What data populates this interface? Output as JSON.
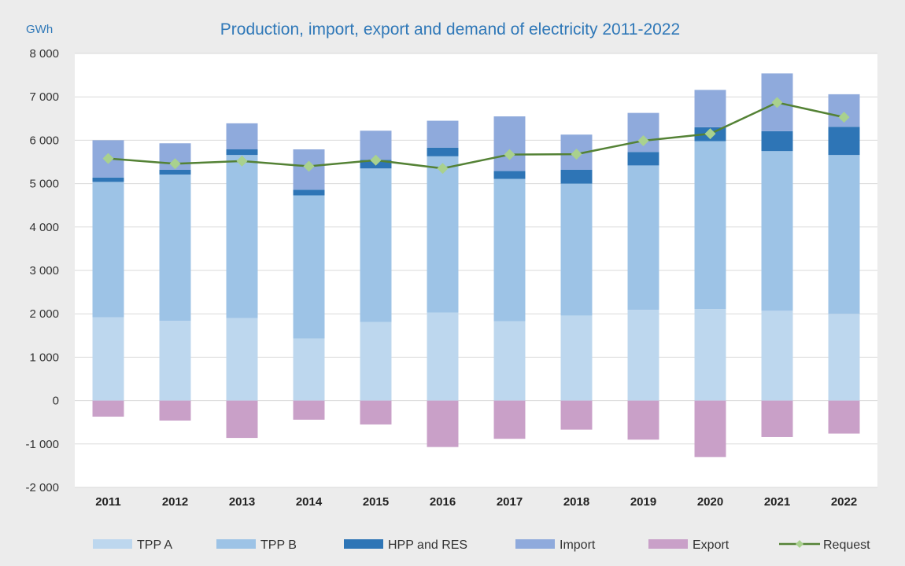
{
  "chart_data": {
    "type": "bar",
    "stacked": true,
    "title": "Production, import, export and demand of electricity 2011-2022",
    "ylabel": "GWh",
    "xlabel": "",
    "ylim": [
      -2000,
      8000
    ],
    "yticks": [
      -2000,
      -1000,
      0,
      1000,
      2000,
      3000,
      4000,
      5000,
      6000,
      7000,
      8000
    ],
    "ytick_labels": [
      "-2 000",
      "-1 000",
      "0",
      "1 000",
      "2 000",
      "3 000",
      "4 000",
      "5 000",
      "6 000",
      "7 000",
      "8 000"
    ],
    "grid": true,
    "legend_position": "bottom",
    "categories": [
      "2011",
      "2012",
      "2013",
      "2014",
      "2015",
      "2016",
      "2017",
      "2018",
      "2019",
      "2020",
      "2021",
      "2022"
    ],
    "series": [
      {
        "name": "TPP A",
        "kind": "bar",
        "color": "#bdd7ee",
        "values": [
          1920,
          1840,
          1900,
          1430,
          1810,
          2030,
          1830,
          1960,
          2090,
          2110,
          2070,
          2000
        ]
      },
      {
        "name": "TPP B",
        "kind": "bar",
        "color": "#9dc3e6",
        "values": [
          3120,
          3370,
          3760,
          3300,
          3540,
          3600,
          3280,
          3040,
          3330,
          3870,
          3680,
          3660
        ]
      },
      {
        "name": "HPP and RES",
        "kind": "bar",
        "color": "#2e75b6",
        "values": [
          100,
          110,
          130,
          130,
          200,
          200,
          180,
          320,
          310,
          320,
          460,
          650
        ]
      },
      {
        "name": "Import",
        "kind": "bar",
        "color": "#8faadc",
        "values": [
          860,
          610,
          600,
          930,
          670,
          620,
          1260,
          810,
          900,
          860,
          1330,
          750
        ]
      },
      {
        "name": "Export",
        "kind": "bar",
        "color": "#c9a0c8",
        "values": [
          -370,
          -460,
          -860,
          -440,
          -550,
          -1070,
          -880,
          -670,
          -900,
          -1300,
          -840,
          -760
        ]
      },
      {
        "name": "Request",
        "kind": "line",
        "color": "#548235",
        "marker_color": "#a9d18e",
        "values": [
          5580,
          5460,
          5520,
          5400,
          5540,
          5350,
          5670,
          5680,
          5990,
          6150,
          6870,
          6530
        ]
      }
    ]
  }
}
